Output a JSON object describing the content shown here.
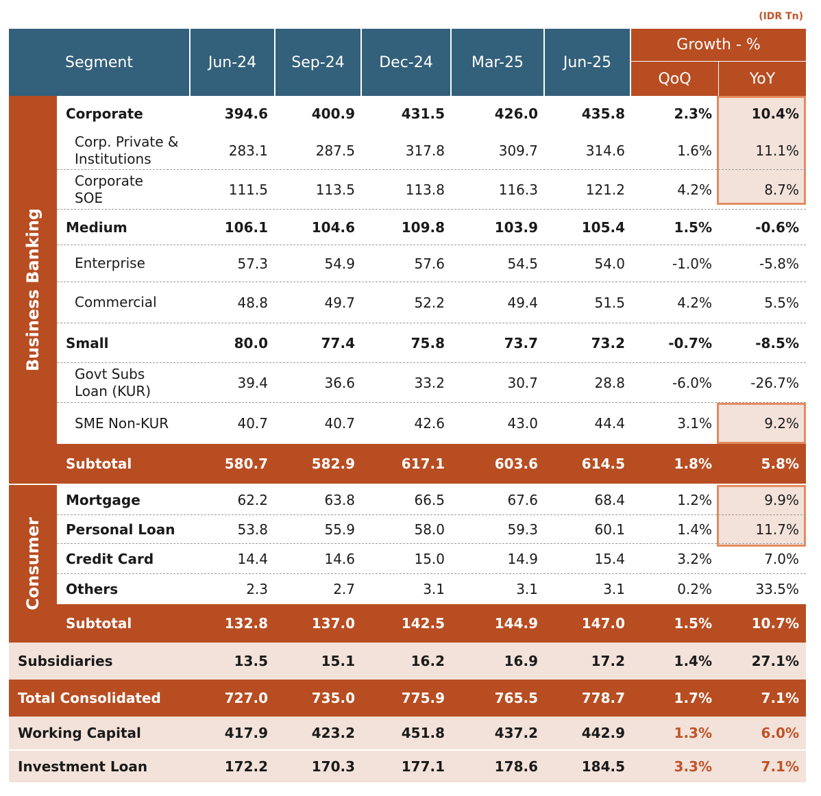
{
  "unit": "(IDR Tn)",
  "headers": {
    "segment": "Segment",
    "periods": [
      "Jun-24",
      "Sep-24",
      "Dec-24",
      "Mar-25",
      "Jun-25"
    ],
    "growth": "Growth - %",
    "qoq": "QoQ",
    "yoy": "YoY"
  },
  "groups": {
    "business_banking": "Business Banking",
    "consumer": "Consumer"
  },
  "rows": {
    "corporate": {
      "label": "Corporate",
      "v": [
        "394.6",
        "400.9",
        "431.5",
        "426.0",
        "435.8",
        "2.3%",
        "10.4%"
      ]
    },
    "corp_private": {
      "label": "Corp. Private & Institutions",
      "v": [
        "283.1",
        "287.5",
        "317.8",
        "309.7",
        "314.6",
        "1.6%",
        "11.1%"
      ]
    },
    "corp_soe": {
      "label": "Corporate SOE",
      "v": [
        "111.5",
        "113.5",
        "113.8",
        "116.3",
        "121.2",
        "4.2%",
        "8.7%"
      ]
    },
    "medium": {
      "label": "Medium",
      "v": [
        "106.1",
        "104.6",
        "109.8",
        "103.9",
        "105.4",
        "1.5%",
        "-0.6%"
      ]
    },
    "enterprise": {
      "label": "Enterprise",
      "v": [
        "57.3",
        "54.9",
        "57.6",
        "54.5",
        "54.0",
        "-1.0%",
        "-5.8%"
      ]
    },
    "commercial": {
      "label": "Commercial",
      "v": [
        "48.8",
        "49.7",
        "52.2",
        "49.4",
        "51.5",
        "4.2%",
        "5.5%"
      ]
    },
    "small": {
      "label": "Small",
      "v": [
        "80.0",
        "77.4",
        "75.8",
        "73.7",
        "73.2",
        "-0.7%",
        "-8.5%"
      ]
    },
    "govt_subs": {
      "label": "Govt Subs Loan (KUR)",
      "v": [
        "39.4",
        "36.6",
        "33.2",
        "30.7",
        "28.8",
        "-6.0%",
        "-26.7%"
      ]
    },
    "sme_nonkur": {
      "label": "SME Non-KUR",
      "v": [
        "40.7",
        "40.7",
        "42.6",
        "43.0",
        "44.4",
        "3.1%",
        "9.2%"
      ]
    },
    "bb_subtotal": {
      "label": "Subtotal",
      "v": [
        "580.7",
        "582.9",
        "617.1",
        "603.6",
        "614.5",
        "1.8%",
        "5.8%"
      ]
    },
    "mortgage": {
      "label": "Mortgage",
      "v": [
        "62.2",
        "63.8",
        "66.5",
        "67.6",
        "68.4",
        "1.2%",
        "9.9%"
      ]
    },
    "personal_loan": {
      "label": "Personal Loan",
      "v": [
        "53.8",
        "55.9",
        "58.0",
        "59.3",
        "60.1",
        "1.4%",
        "11.7%"
      ]
    },
    "credit_card": {
      "label": "Credit Card",
      "v": [
        "14.4",
        "14.6",
        "15.0",
        "14.9",
        "15.4",
        "3.2%",
        "7.0%"
      ]
    },
    "others": {
      "label": "Others",
      "v": [
        "2.3",
        "2.7",
        "3.1",
        "3.1",
        "3.1",
        "0.2%",
        "33.5%"
      ]
    },
    "cons_subtotal": {
      "label": "Subtotal",
      "v": [
        "132.8",
        "137.0",
        "142.5",
        "144.9",
        "147.0",
        "1.5%",
        "10.7%"
      ]
    },
    "subsidiaries": {
      "label": "Subsidiaries",
      "v": [
        "13.5",
        "15.1",
        "16.2",
        "16.9",
        "17.2",
        "1.4%",
        "27.1%"
      ]
    },
    "total": {
      "label": "Total Consolidated",
      "v": [
        "727.0",
        "735.0",
        "775.9",
        "765.5",
        "778.7",
        "1.7%",
        "7.1%"
      ]
    },
    "working_capital": {
      "label": "Working Capital",
      "v": [
        "417.9",
        "423.2",
        "451.8",
        "437.2",
        "442.9",
        "1.3%",
        "6.0%"
      ]
    },
    "investment_loan": {
      "label": "Investment Loan",
      "v": [
        "172.2",
        "170.3",
        "177.1",
        "178.6",
        "184.5",
        "3.3%",
        "7.1%"
      ]
    }
  }
}
